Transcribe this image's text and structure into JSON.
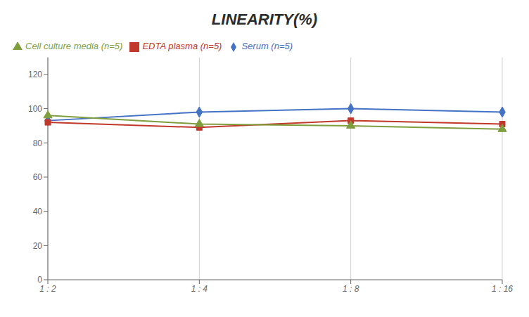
{
  "chart_data": {
    "type": "line",
    "title": "LINEARITY(%)",
    "categories": [
      "1 : 2",
      "1 : 4",
      "1 : 8",
      "1 : 16"
    ],
    "series": [
      {
        "name": "Serum (n=5)",
        "color": "#4472C4",
        "marker": "diamond",
        "values": [
          93,
          98,
          100,
          98
        ]
      },
      {
        "name": "EDTA plasma (n=5)",
        "color": "#C0392B",
        "marker": "square",
        "values": [
          92,
          89,
          93,
          91
        ]
      },
      {
        "name": "Cell culture media (n=5)",
        "color": "#7F9F3F",
        "marker": "triangle",
        "values": [
          96,
          91,
          90,
          88
        ]
      }
    ],
    "ylim": [
      0,
      130
    ],
    "yticks": [
      0,
      20,
      40,
      60,
      80,
      100,
      120
    ],
    "grid": "x",
    "legend": "top"
  }
}
